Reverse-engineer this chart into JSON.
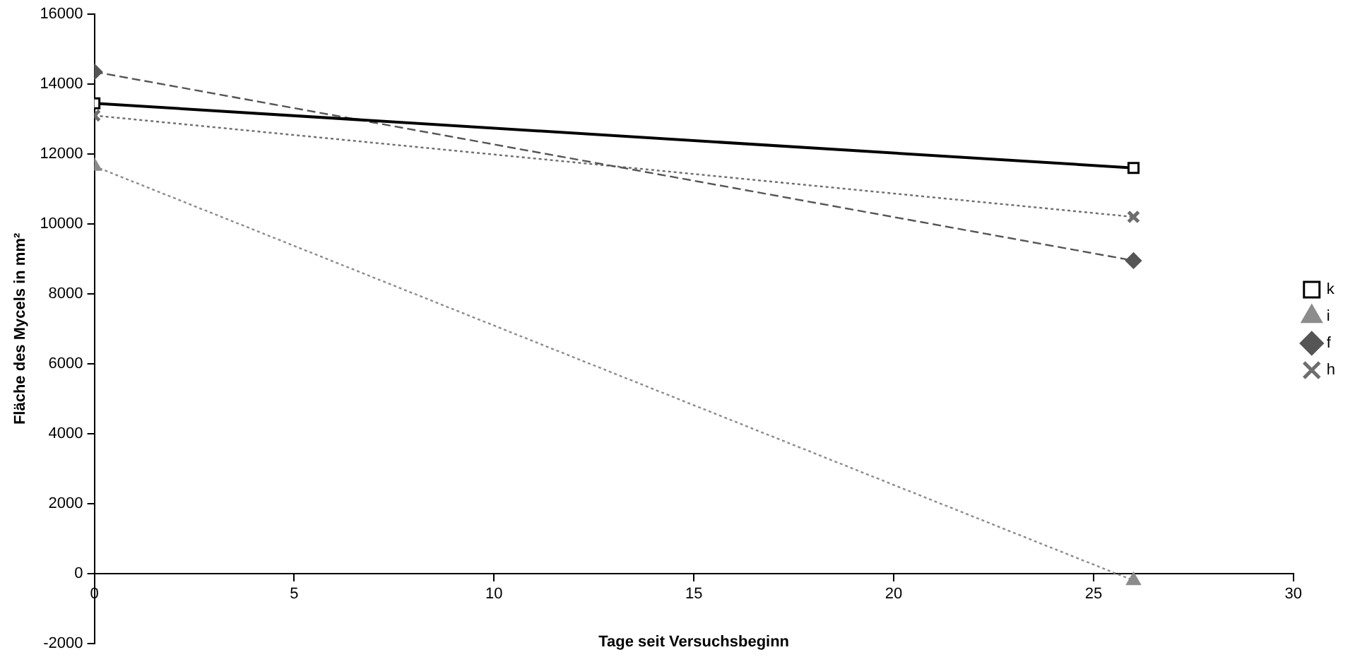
{
  "chart_data": {
    "type": "line",
    "xlabel": "Tage seit Versuchsbeginn",
    "ylabel": "Fläche des Mycels in mm²",
    "x": [
      0,
      26
    ],
    "series": [
      {
        "name": "k",
        "color": "#000000",
        "values": [
          13450,
          11600
        ],
        "marker": "square",
        "line_style": "solid"
      },
      {
        "name": "i",
        "color": "#8c8c8c",
        "values": [
          11650,
          -200
        ],
        "marker": "triangle",
        "line_style": "dotted"
      },
      {
        "name": "f",
        "color": "#555555",
        "values": [
          14350,
          8950
        ],
        "marker": "diamond",
        "line_style": "dashed"
      },
      {
        "name": "h",
        "color": "#6e6e6e",
        "values": [
          13100,
          10200
        ],
        "marker": "cross",
        "line_style": "dotted"
      }
    ],
    "xlim": [
      0,
      30
    ],
    "xticks": [
      0,
      5,
      10,
      15,
      20,
      25,
      30
    ],
    "ylim": [
      -2000,
      16000
    ],
    "yticks": [
      -2000,
      0,
      2000,
      4000,
      6000,
      8000,
      10000,
      12000,
      14000,
      16000
    ],
    "grid": false,
    "legend": "right"
  }
}
